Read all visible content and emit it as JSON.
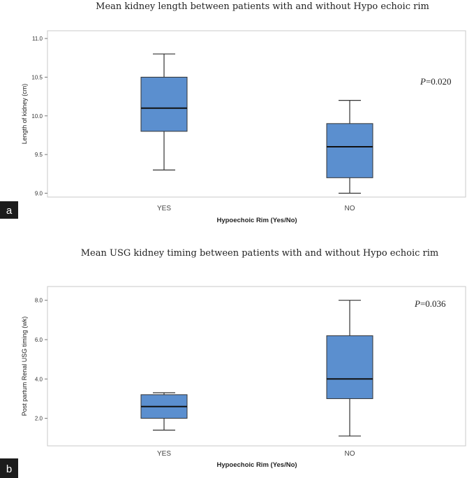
{
  "chart_data": [
    {
      "type": "boxplot",
      "panel_label": "a",
      "title": "Mean kidney length between patients with and without Hypo echoic rim",
      "xlabel": "Hypoechoic Rim (Yes/No)",
      "ylabel": "Length of kidney (cm)",
      "ylim": [
        8.95,
        11.1
      ],
      "yticks": [
        "9.0",
        "9.5",
        "10.0",
        "10.5",
        "11.0"
      ],
      "ytick_values": [
        9.0,
        9.5,
        10.0,
        10.5,
        11.0
      ],
      "categories": [
        "YES",
        "NO"
      ],
      "boxes": [
        {
          "min": 9.3,
          "q1": 9.8,
          "median": 10.1,
          "q3": 10.5,
          "max": 10.8
        },
        {
          "min": 9.0,
          "q1": 9.2,
          "median": 9.6,
          "q3": 9.9,
          "max": 10.2
        }
      ],
      "p_label": "P",
      "p_value": "=0.020",
      "box_color": "#5b8fcf"
    },
    {
      "type": "boxplot",
      "panel_label": "b",
      "title": "Mean USG kidney timing between patients with and without Hypo echoic rim",
      "xlabel": "Hypoechoic Rim (Yes/No)",
      "ylabel": "Post partum Renal USG timing (wk)",
      "ylim": [
        0.6,
        8.7
      ],
      "yticks": [
        "2.0",
        "4.0",
        "6.0",
        "8.0"
      ],
      "ytick_values": [
        2.0,
        4.0,
        6.0,
        8.0
      ],
      "categories": [
        "YES",
        "NO"
      ],
      "boxes": [
        {
          "min": 1.4,
          "q1": 2.0,
          "median": 2.6,
          "q3": 3.2,
          "max": 3.3
        },
        {
          "min": 1.1,
          "q1": 3.0,
          "median": 4.0,
          "q3": 6.2,
          "max": 8.0
        }
      ],
      "p_label": "P",
      "p_value": "=0.036",
      "box_color": "#5b8fcf"
    }
  ]
}
